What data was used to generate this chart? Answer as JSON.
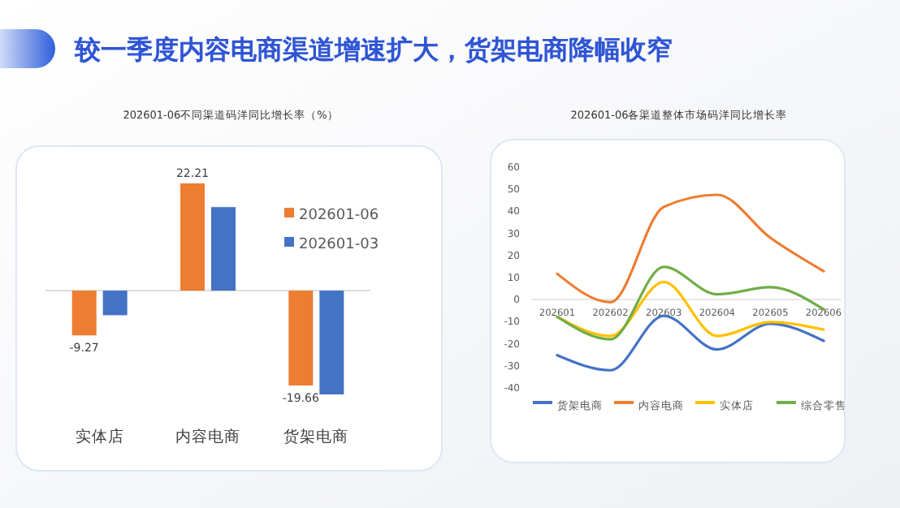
{
  "chart_data": [
    {
      "type": "bar",
      "title": "202601-06不同渠道码洋同比增长率（%）",
      "annotations": [
        "较一季度内容电商渠道增速扩大，货架电商降幅收窄"
      ],
      "categories": [
        "实体店",
        "内容电商",
        "货架电商"
      ],
      "tick_labels": "x",
      "legend": "top right",
      "series": [
        {
          "name": "202601-06",
          "color": "#ed7d31",
          "values": [
            -9.27,
            22.21,
            -19.66
          ],
          "value_labels": [
            "-9.27",
            "22.21",
            "-19.66"
          ]
        },
        {
          "name": "202601-03",
          "color": "#4472c4",
          "values": [
            -5.1,
            17.3,
            -21.5
          ]
        }
      ]
    },
    {
      "type": "line",
      "title": "202601-06各渠道整体市场码洋同比增长率",
      "categories": [
        "202601",
        "202602",
        "202603",
        "202604",
        "202605",
        "202606"
      ],
      "ylim": [
        -40,
        60
      ],
      "yticks": [
        -40,
        -30,
        -20,
        -10,
        0,
        10,
        20,
        30,
        40,
        50,
        60
      ],
      "grid": false,
      "legend": "bottom",
      "series": [
        {
          "name": "货架电商",
          "color": "#4472c4",
          "values": [
            -25.2,
            -32,
            -7.3,
            -22.6,
            -10.9,
            -18.7
          ]
        },
        {
          "name": "内容电商",
          "color": "#ed7d31",
          "values": [
            11.7,
            -1.2,
            42,
            47.5,
            28,
            12.9
          ]
        },
        {
          "name": "实体店",
          "color": "#ffc000",
          "values": [
            -7.8,
            -16.5,
            8,
            -16.5,
            -10.2,
            -13.6
          ]
        },
        {
          "name": "综合零售",
          "color": "#70ad47",
          "values": [
            -7.8,
            -18,
            14.8,
            2.4,
            5.6,
            -4.4
          ]
        }
      ]
    }
  ]
}
